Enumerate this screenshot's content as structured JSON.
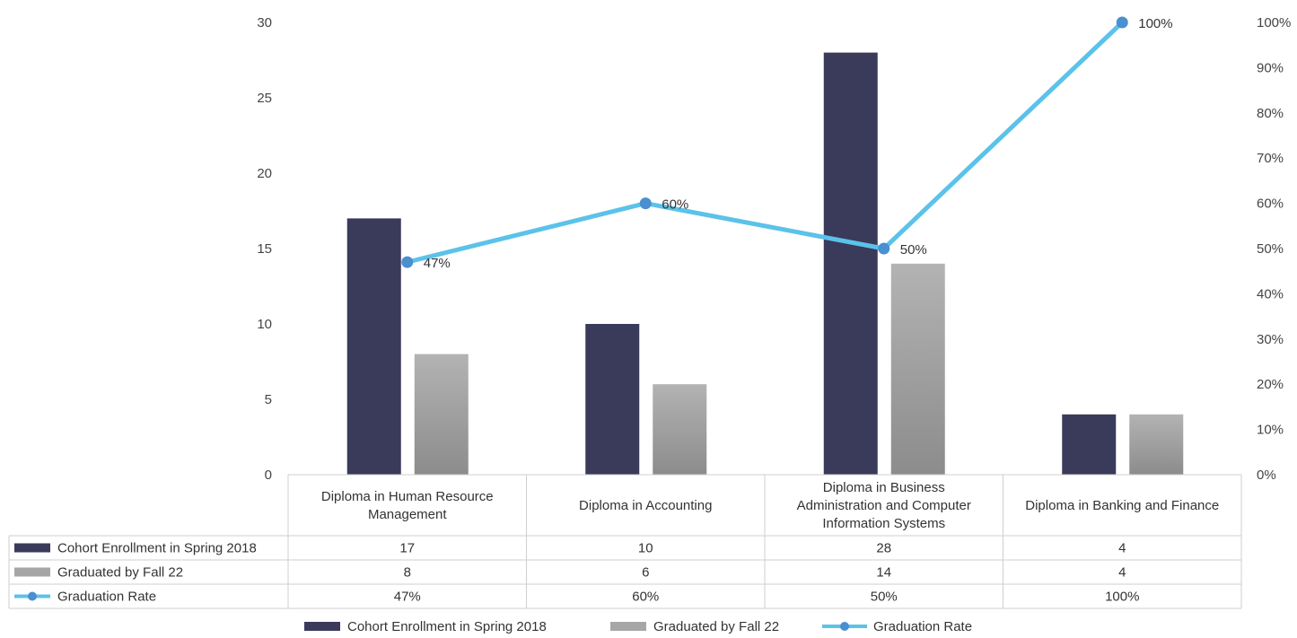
{
  "chart_data": {
    "type": "bar",
    "categories": [
      "Diploma in Human Resource Management",
      "Diploma in Accounting",
      "Diploma in Business Administration and Computer Information Systems",
      "Diploma in Banking and Finance"
    ],
    "category_lines": [
      [
        "Diploma in Human Resource",
        "Management"
      ],
      [
        "Diploma in Accounting"
      ],
      [
        "Diploma in Business",
        "Administration and Computer",
        "Information Systems"
      ],
      [
        "Diploma in Banking and Finance"
      ]
    ],
    "series": [
      {
        "name": "Cohort Enrollment in Spring 2018",
        "type": "bar",
        "axis": "left",
        "color": "#3a3a5a",
        "values": [
          17,
          10,
          28,
          4
        ]
      },
      {
        "name": "Graduated by Fall 22",
        "type": "bar",
        "axis": "left",
        "color": "#a6a6a6",
        "values": [
          8,
          6,
          14,
          4
        ]
      },
      {
        "name": "Graduation Rate",
        "type": "line",
        "axis": "right",
        "color": "#5bc2ea",
        "marker_color": "#4a8fd0",
        "values": [
          0.47,
          0.6,
          0.5,
          1.0
        ]
      }
    ],
    "y_left": {
      "min": 0,
      "max": 30,
      "ticks": [
        "0",
        "5",
        "10",
        "15",
        "20",
        "25",
        "30"
      ]
    },
    "y_right": {
      "min": 0,
      "max": 1,
      "ticks": [
        "0%",
        "10%",
        "20%",
        "30%",
        "40%",
        "50%",
        "60%",
        "70%",
        "80%",
        "90%",
        "100%"
      ]
    },
    "line_labels": [
      "47%",
      "60%",
      "50%",
      "100%"
    ],
    "table": {
      "rows": [
        {
          "name": "Cohort Enrollment in Spring 2018",
          "cells": [
            "17",
            "10",
            "28",
            "4"
          ]
        },
        {
          "name": "Graduated by Fall 22",
          "cells": [
            "8",
            "6",
            "14",
            "4"
          ]
        },
        {
          "name": "Graduation Rate",
          "cells": [
            "47%",
            "60%",
            "50%",
            "100%"
          ]
        }
      ]
    },
    "legend": {
      "position": "bottom",
      "items": [
        "Cohort Enrollment in Spring 2018",
        "Graduated by Fall 22",
        "Graduation Rate"
      ]
    },
    "grid": false
  }
}
